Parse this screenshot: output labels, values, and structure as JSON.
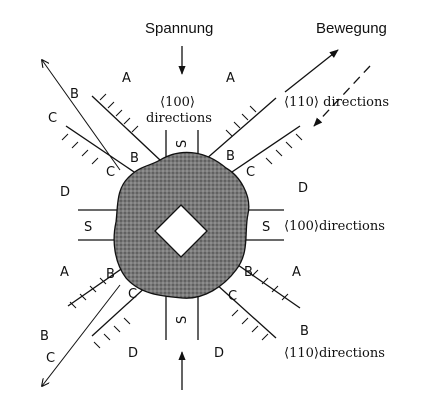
{
  "figure": {
    "top_label": "Spannung",
    "top_right_label": "Bewegung",
    "dir_100_top_line1": "⟨100⟩",
    "dir_100_top_line2": "directions",
    "dir_110_upper": "⟨110⟩ directions",
    "dir_100_right": "⟨100⟩directions",
    "dir_110_lower": "⟨110⟩directions",
    "region_labels": {
      "a": "A",
      "b": "B",
      "c": "C",
      "d": "D",
      "s": "S"
    }
  }
}
